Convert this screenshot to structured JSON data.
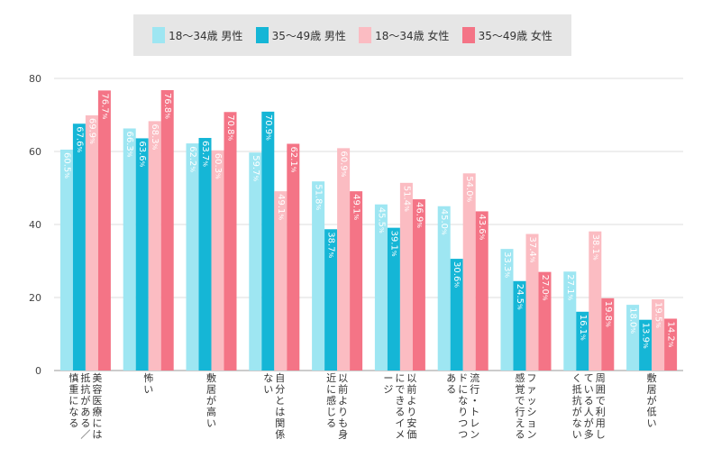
{
  "chart_data": {
    "type": "bar",
    "categories": [
      "美容医療には抵抗がある／慎重になる",
      "怖い",
      "敷居が高い",
      "自分とは関係ない",
      "以前よりも身近に感じる",
      "以前より安価にできるイメージ",
      "流行・トレンドになりつつある",
      "ファッション感覚で行える",
      "周囲で利用している人が多く抵抗がない",
      "敷居が低い"
    ],
    "series": [
      {
        "name": "18〜34歳 男性",
        "color": "#9ee6f2",
        "values": [
          60.5,
          66.3,
          62.2,
          59.7,
          51.8,
          45.5,
          45.0,
          33.3,
          27.1,
          18.0
        ],
        "labels": [
          "60.5",
          "66.3",
          "62.2",
          "59.7",
          "51.8",
          "45.5",
          "45.0",
          "33.3",
          "27.1",
          "18.0"
        ]
      },
      {
        "name": "35〜49歳 男性",
        "color": "#15b6d6",
        "values": [
          67.6,
          63.6,
          63.7,
          70.9,
          38.7,
          39.1,
          30.6,
          24.5,
          16.1,
          13.9
        ],
        "labels": [
          "67.6",
          "63.6",
          "63.7",
          "70.9",
          "38.7",
          "39.1",
          "30.6",
          "24.5",
          "16.1",
          "13.9"
        ]
      },
      {
        "name": "18〜34歳 女性",
        "color": "#fbbcc2",
        "values": [
          69.9,
          68.3,
          60.3,
          49.1,
          60.9,
          51.4,
          54.0,
          37.4,
          38.1,
          19.5
        ],
        "labels": [
          "69.9",
          "68.3",
          "60.3",
          "49.1",
          "60.9",
          "51.4",
          "54.0",
          "37.4",
          "38.1",
          "19.5"
        ]
      },
      {
        "name": "35〜49歳 女性",
        "color": "#f47486",
        "values": [
          76.7,
          76.8,
          70.8,
          62.1,
          49.1,
          46.9,
          43.6,
          27.0,
          19.8,
          14.2
        ],
        "labels": [
          "76.7",
          "76.8",
          "70.8",
          "62.1",
          "49.1",
          "46.9",
          "43.6",
          "27.0",
          "19.8",
          "14.2"
        ]
      }
    ],
    "ylim": [
      0,
      80
    ],
    "yticks": [
      "0",
      "20",
      "40",
      "60",
      "80"
    ],
    "unit": "%",
    "grid": true,
    "legend_position": "top"
  }
}
